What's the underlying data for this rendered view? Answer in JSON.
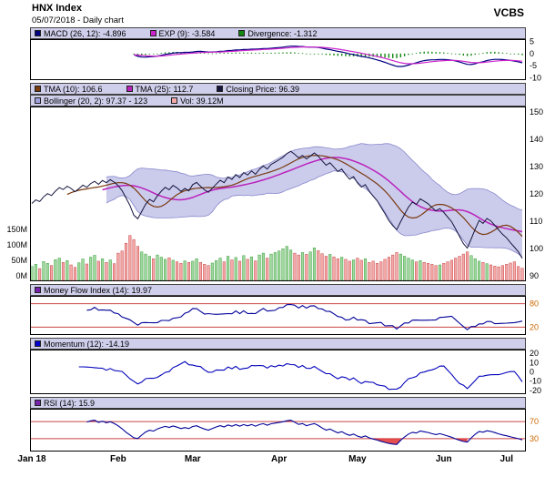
{
  "header": {
    "title": "HNX Index",
    "subtitle": "05/07/2018 - Daily chart",
    "brand": "VCBS"
  },
  "chart_data": {
    "type": "line",
    "title": "HNX Index",
    "subtitle": "05/07/2018 - Daily chart",
    "x_labels": [
      {
        "label": "Jan 18",
        "i": 0
      },
      {
        "label": "Feb",
        "i": 22
      },
      {
        "label": "Mar",
        "i": 41
      },
      {
        "label": "Apr",
        "i": 63
      },
      {
        "label": "May",
        "i": 83
      },
      {
        "label": "Jun",
        "i": 105
      },
      {
        "label": "Jul",
        "i": 121
      }
    ],
    "indicator_last_values": {
      "macd": -4.896,
      "exp9": -3.584,
      "divergence": -1.312,
      "tma10": 106.6,
      "tma25": 112.7,
      "closing_price": 96.39,
      "bollinger_lower": 97.37,
      "bollinger_upper": 123,
      "volume_m": 39.12,
      "mfi14": 19.97,
      "momentum12": -14.19,
      "rsi14": 15.9
    },
    "close": [
      116.5,
      117.8,
      117.2,
      118.9,
      120.1,
      119.4,
      121.0,
      122.3,
      121.6,
      122.8,
      122.0,
      120.8,
      121.9,
      123.2,
      122.4,
      123.8,
      124.6,
      123.5,
      124.9,
      124.1,
      125.2,
      124.3,
      123.0,
      121.2,
      118.5,
      115.8,
      112.2,
      110.9,
      113.5,
      116.2,
      118.0,
      117.1,
      119.3,
      121.0,
      122.4,
      121.5,
      123.1,
      122.2,
      120.9,
      122.0,
      121.1,
      123.4,
      124.2,
      122.8,
      121.5,
      120.6,
      122.1,
      123.6,
      125.0,
      124.1,
      126.2,
      125.3,
      127.1,
      126.0,
      127.8,
      126.9,
      128.4,
      127.2,
      129.0,
      130.2,
      129.1,
      130.8,
      131.6,
      132.5,
      133.4,
      134.8,
      135.6,
      134.5,
      133.2,
      134.1,
      132.8,
      133.9,
      135.0,
      133.8,
      132.1,
      130.5,
      131.4,
      129.8,
      128.2,
      129.1,
      127.0,
      125.4,
      126.3,
      124.0,
      122.5,
      123.4,
      121.0,
      119.2,
      117.5,
      115.1,
      112.8,
      110.2,
      108.4,
      106.9,
      109.8,
      112.5,
      115.2,
      117.0,
      116.1,
      118.2,
      117.3,
      116.4,
      115.0,
      113.8,
      114.6,
      113.2,
      111.5,
      109.8,
      107.2,
      104.5,
      101.8,
      100.2,
      103.5,
      107.1,
      110.3,
      109.2,
      111.0,
      110.1,
      108.5,
      106.8,
      105.2,
      103.9,
      102.1,
      100.5,
      98.8,
      96.39
    ],
    "volume_millions": [
      45,
      52,
      38,
      61,
      55,
      48,
      67,
      72,
      58,
      64,
      50,
      42,
      57,
      69,
      53,
      75,
      81,
      62,
      70,
      58,
      66,
      54,
      88,
      95,
      120,
      145,
      132,
      110,
      92,
      85,
      78,
      70,
      82,
      75,
      68,
      73,
      65,
      60,
      55,
      63,
      58,
      62,
      70,
      58,
      52,
      48,
      56,
      64,
      72,
      60,
      78,
      66,
      74,
      62,
      80,
      68,
      76,
      63,
      82,
      88,
      72,
      85,
      90,
      95,
      102,
      110,
      98,
      88,
      82,
      90,
      84,
      92,
      105,
      96,
      86,
      78,
      84,
      76,
      70,
      75,
      68,
      62,
      66,
      72,
      65,
      70,
      58,
      62,
      55,
      60,
      68,
      75,
      82,
      90,
      85,
      78,
      72,
      66,
      60,
      64,
      58,
      55,
      52,
      48,
      50,
      55,
      60,
      65,
      72,
      78,
      85,
      92,
      80,
      70,
      62,
      58,
      54,
      50,
      46,
      44,
      48,
      52,
      56,
      60,
      45,
      39.12
    ],
    "panels": {
      "macd": {
        "ylim": [
          -11,
          6
        ],
        "yticks": [
          {
            "v": 5,
            "label": "5"
          },
          {
            "v": 0,
            "label": "0"
          },
          {
            "v": -5,
            "label": "-5"
          },
          {
            "v": -10,
            "label": "-10"
          }
        ],
        "legend": [
          {
            "label": "MACD (26, 12): -4.896",
            "color": "#000080"
          },
          {
            "label": "EXP (9): -3.584",
            "color": "#cc22cc"
          },
          {
            "label": "Divergence: -1.312",
            "color": "#118811"
          }
        ]
      },
      "main": {
        "ylim": [
          88,
          152
        ],
        "yticks": [
          {
            "v": 150,
            "label": "150"
          },
          {
            "v": 140,
            "label": "140"
          },
          {
            "v": 130,
            "label": "130"
          },
          {
            "v": 120,
            "label": "120"
          },
          {
            "v": 110,
            "label": "110"
          },
          {
            "v": 100,
            "label": "100"
          },
          {
            "v": 90,
            "label": "90"
          }
        ],
        "vol_ticks": [
          {
            "v": 150,
            "label": "150M"
          },
          {
            "v": 100,
            "label": "100M"
          },
          {
            "v": 50,
            "label": "50M"
          },
          {
            "v": 0,
            "label": "0M"
          }
        ],
        "legend_row1": [
          {
            "label": "TMA (10): 106.6",
            "color": "#7a3b10"
          },
          {
            "label": "TMA (25): 112.7",
            "color": "#bb22bb"
          },
          {
            "label": "Closing Price: 96.39",
            "color": "#14143c"
          }
        ],
        "legend_row2": [
          {
            "label": "Bollinger (20, 2): 97.37 - 123",
            "color": "#a0a0dc"
          },
          {
            "label": "Vol: 39.12M",
            "color": "#f5a9a9"
          }
        ]
      },
      "mfi": {
        "ylim": [
          0,
          100
        ],
        "thresholds": [
          80,
          20
        ],
        "yticks": [
          {
            "v": 80,
            "label": "80",
            "color": "#cc6600"
          },
          {
            "v": 20,
            "label": "20",
            "color": "#cc6600"
          }
        ],
        "legend": [
          {
            "label": "Money Flow Index (14): 19.97",
            "color": "#7722aa"
          }
        ]
      },
      "momentum": {
        "ylim": [
          -24,
          24
        ],
        "yticks": [
          {
            "v": 20,
            "label": "20"
          },
          {
            "v": 10,
            "label": "10"
          },
          {
            "v": 0,
            "label": "0"
          },
          {
            "v": -10,
            "label": "-10"
          },
          {
            "v": -20,
            "label": "-20"
          }
        ],
        "legend": [
          {
            "label": "Momentum (12): -14.19",
            "color": "#0000cc"
          }
        ]
      },
      "rsi": {
        "ylim": [
          0,
          100
        ],
        "thresholds": [
          70,
          30
        ],
        "yticks": [
          {
            "v": 70,
            "label": "70",
            "color": "#cc6600"
          },
          {
            "v": 30,
            "label": "30",
            "color": "#cc6600"
          }
        ],
        "legend": [
          {
            "label": "RSI (14): 15.9",
            "color": "#7722aa"
          }
        ]
      }
    },
    "colors": {
      "close": "#14143c",
      "tma10": "#7a3b10",
      "tma25": "#bb22bb",
      "boll_fill": "#a0a0dc",
      "boll_stroke": "#8888cc",
      "vol_up": "#9fd89f",
      "vol_up_edge": "#3f9f3f",
      "vol_down": "#f5a9a9",
      "vol_down_edge": "#c64444",
      "macd": "#000080",
      "exp": "#cc22cc",
      "hist": "#118811",
      "mfi": "#000099",
      "momentum": "#0000bb",
      "rsi": "#000099",
      "threshold": "#cc4444",
      "zone_fill": "#e03030"
    }
  }
}
